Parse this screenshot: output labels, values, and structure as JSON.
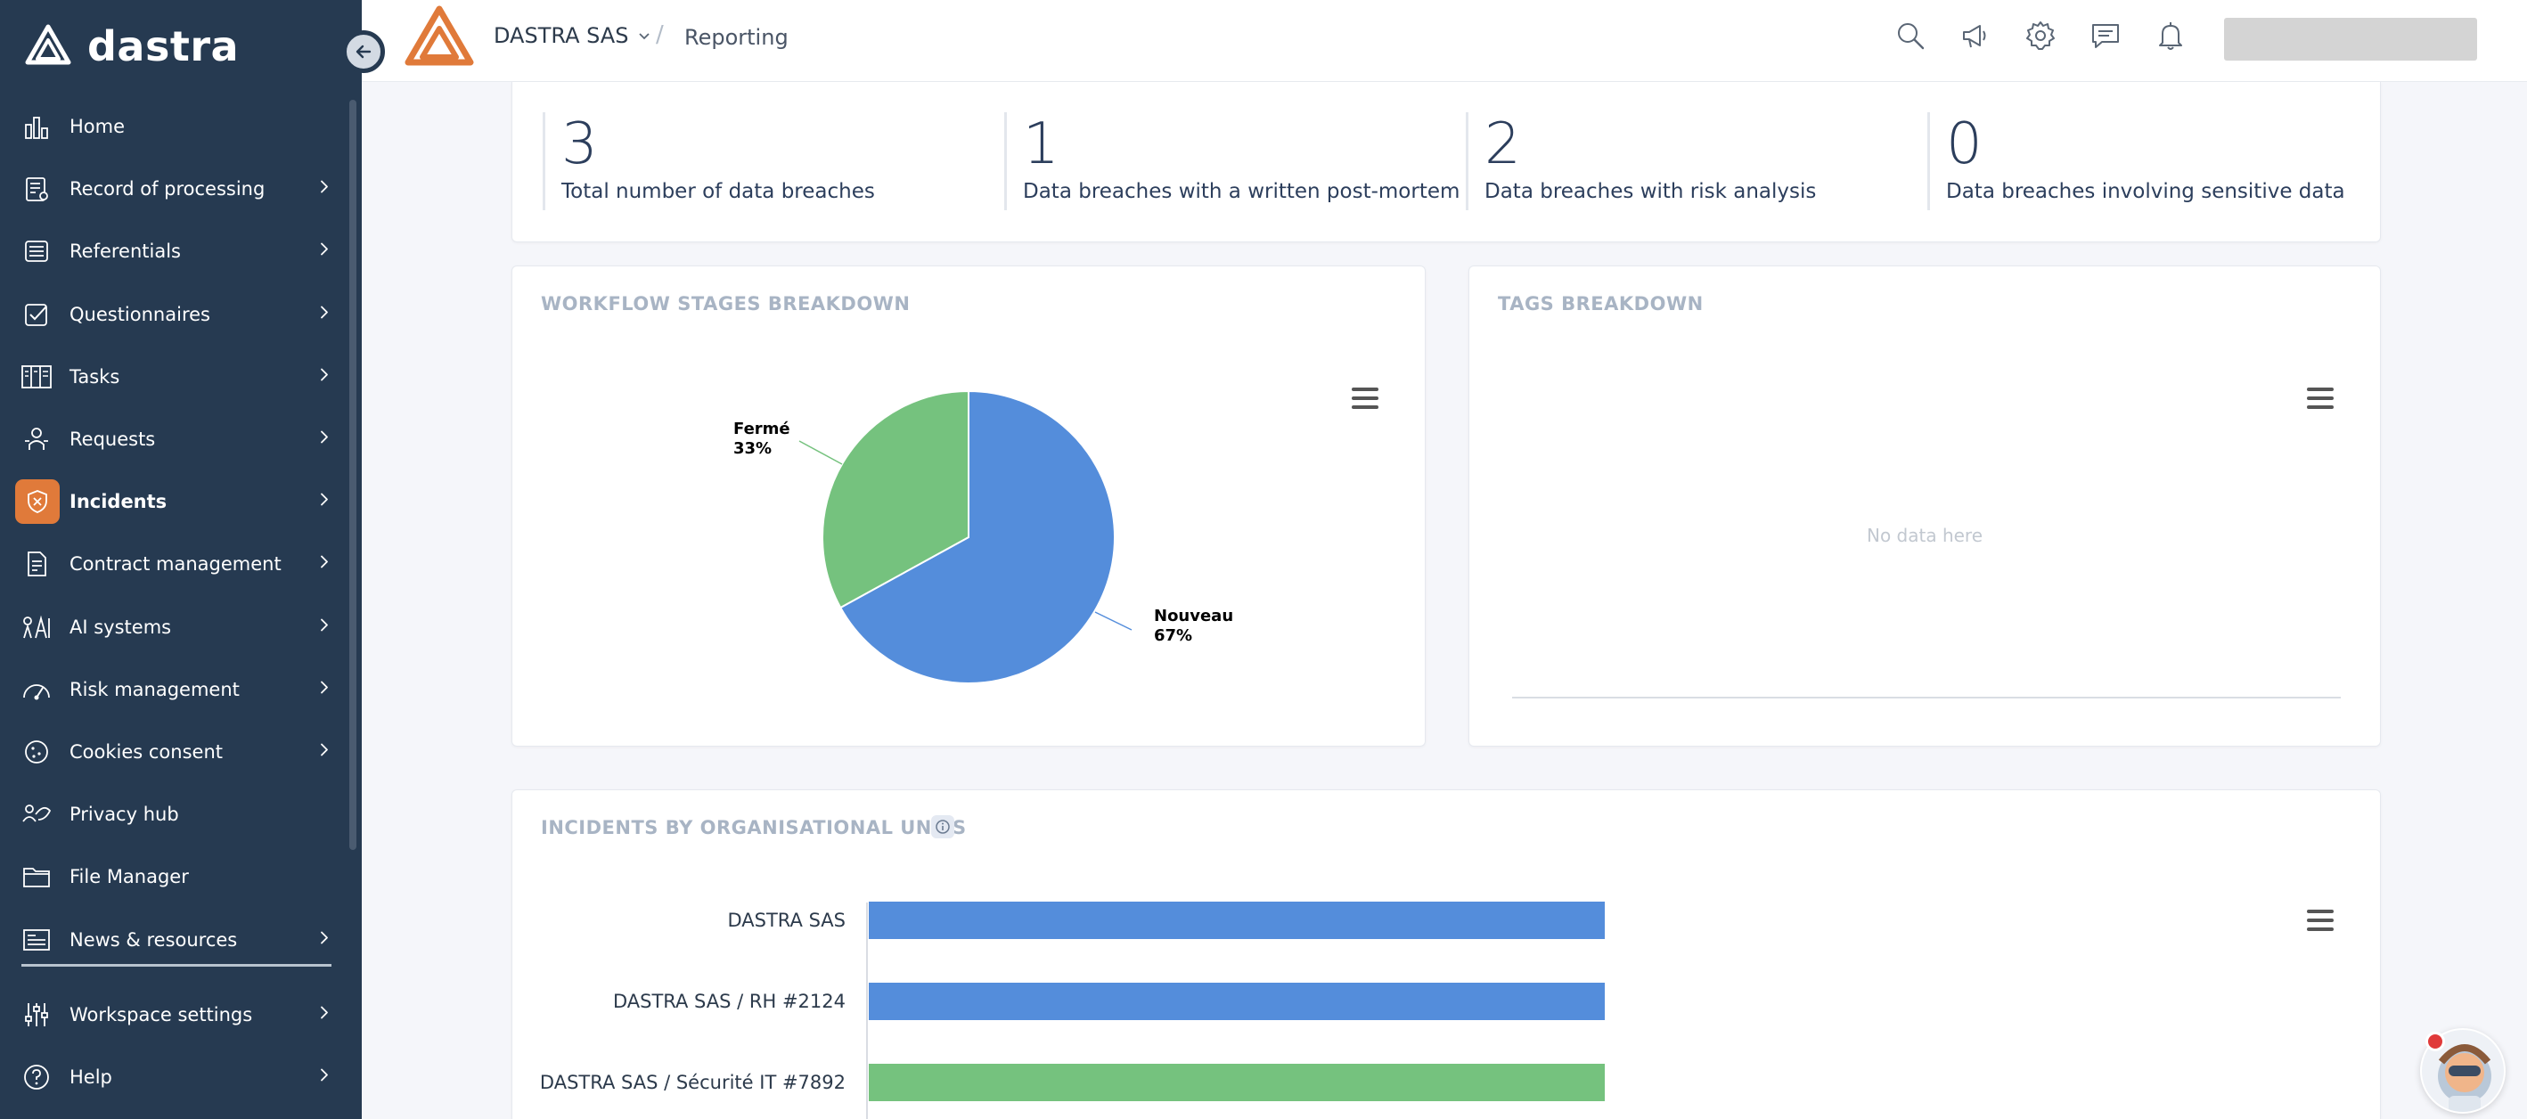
{
  "app": {
    "brand_name": "dastra"
  },
  "sidebar": {
    "items": [
      {
        "label": "Home",
        "icon": "bar-chart-icon",
        "chevron": false,
        "active": false
      },
      {
        "label": "Record of processing",
        "icon": "record-icon",
        "chevron": true,
        "active": false
      },
      {
        "label": "Referentials",
        "icon": "database-icon",
        "chevron": true,
        "active": false
      },
      {
        "label": "Questionnaires",
        "icon": "checkbox-icon",
        "chevron": true,
        "active": false
      },
      {
        "label": "Tasks",
        "icon": "kanban-icon",
        "chevron": true,
        "active": false
      },
      {
        "label": "Requests",
        "icon": "person-request-icon",
        "chevron": true,
        "active": false
      },
      {
        "label": "Incidents",
        "icon": "shield-icon",
        "chevron": true,
        "active": true
      },
      {
        "label": "Contract management",
        "icon": "contract-icon",
        "chevron": true,
        "active": false
      },
      {
        "label": "AI systems",
        "icon": "ai-icon",
        "chevron": true,
        "active": false
      },
      {
        "label": "Risk management",
        "icon": "gauge-icon",
        "chevron": true,
        "active": false
      },
      {
        "label": "Cookies consent",
        "icon": "cookie-icon",
        "chevron": true,
        "active": false
      },
      {
        "label": "Privacy hub",
        "icon": "privacy-hub-icon",
        "chevron": false,
        "active": false
      },
      {
        "label": "File Manager",
        "icon": "folder-icon",
        "chevron": false,
        "active": false
      },
      {
        "label": "News & resources",
        "icon": "news-icon",
        "chevron": true,
        "active": false
      }
    ],
    "bottom_items": [
      {
        "label": "Workspace settings",
        "icon": "sliders-icon",
        "chevron": true
      },
      {
        "label": "Help",
        "icon": "help-icon",
        "chevron": true
      }
    ]
  },
  "header": {
    "org_name": "DASTRA SAS",
    "separator": "/",
    "page_title": "Reporting"
  },
  "stats": [
    {
      "value": "3",
      "label": "Total number of data breaches"
    },
    {
      "value": "1",
      "label": "Data breaches with a written post-mortem"
    },
    {
      "value": "2",
      "label": "Data breaches with risk analysis"
    },
    {
      "value": "0",
      "label": "Data breaches involving sensitive data"
    }
  ],
  "workflow": {
    "title": "WORKFLOW STAGES BREAKDOWN"
  },
  "tags": {
    "title": "TAGS BREAKDOWN",
    "empty_text": "No data here"
  },
  "units": {
    "title": "INCIDENTS BY ORGANISATIONAL UNITS"
  },
  "colors": {
    "sidebar_bg": "#263a51",
    "accent_orange": "#e07a3a",
    "chart_blue": "#548ddb",
    "chart_green": "#75c27e"
  },
  "chart_data": [
    {
      "type": "pie",
      "title": "",
      "slices": [
        {
          "label": "Nouveau",
          "value": 67,
          "color": "#548ddb"
        },
        {
          "label": "Fermé",
          "value": 33,
          "color": "#75c27e"
        }
      ]
    },
    {
      "type": "bar",
      "orientation": "horizontal",
      "title": "",
      "categories": [
        "DASTRA SAS",
        "DASTRA SAS / RH #2124",
        "DASTRA SAS / Sécurité IT #7892"
      ],
      "values": [
        1,
        1,
        1
      ],
      "colors": [
        "#548ddb",
        "#548ddb",
        "#75c27e"
      ]
    }
  ]
}
